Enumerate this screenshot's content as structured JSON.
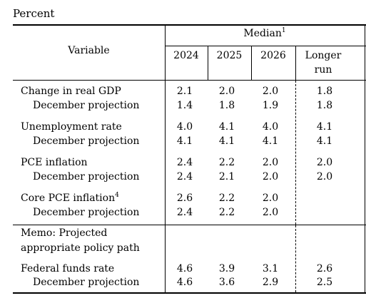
{
  "percent_label": "Percent",
  "header": {
    "variable": "Variable",
    "median": "Median",
    "median_note": "1",
    "years": [
      "2024",
      "2025",
      "2026"
    ],
    "longer_run_line1": "Longer",
    "longer_run_line2": "run"
  },
  "groups": [
    {
      "label": "Change in real GDP",
      "values": [
        "2.1",
        "2.0",
        "2.0",
        "1.8"
      ],
      "sub_label": "December projection",
      "sub_values": [
        "1.4",
        "1.8",
        "1.9",
        "1.8"
      ]
    },
    {
      "label": "Unemployment rate",
      "values": [
        "4.0",
        "4.1",
        "4.0",
        "4.1"
      ],
      "sub_label": "December projection",
      "sub_values": [
        "4.1",
        "4.1",
        "4.1",
        "4.1"
      ]
    },
    {
      "label": "PCE inflation",
      "values": [
        "2.4",
        "2.2",
        "2.0",
        "2.0"
      ],
      "sub_label": "December projection",
      "sub_values": [
        "2.4",
        "2.1",
        "2.0",
        "2.0"
      ]
    },
    {
      "label": "Core PCE inflation",
      "note": "4",
      "values": [
        "2.6",
        "2.2",
        "2.0",
        ""
      ],
      "sub_label": "December projection",
      "sub_values": [
        "2.4",
        "2.2",
        "2.0",
        ""
      ]
    }
  ],
  "memo": {
    "line1": "Memo: Projected",
    "line2": "appropriate policy path"
  },
  "fed_funds": {
    "label": "Federal funds rate",
    "values": [
      "4.6",
      "3.9",
      "3.1",
      "2.6"
    ],
    "sub_label": "December projection",
    "sub_values": [
      "4.6",
      "3.6",
      "2.9",
      "2.5"
    ]
  }
}
